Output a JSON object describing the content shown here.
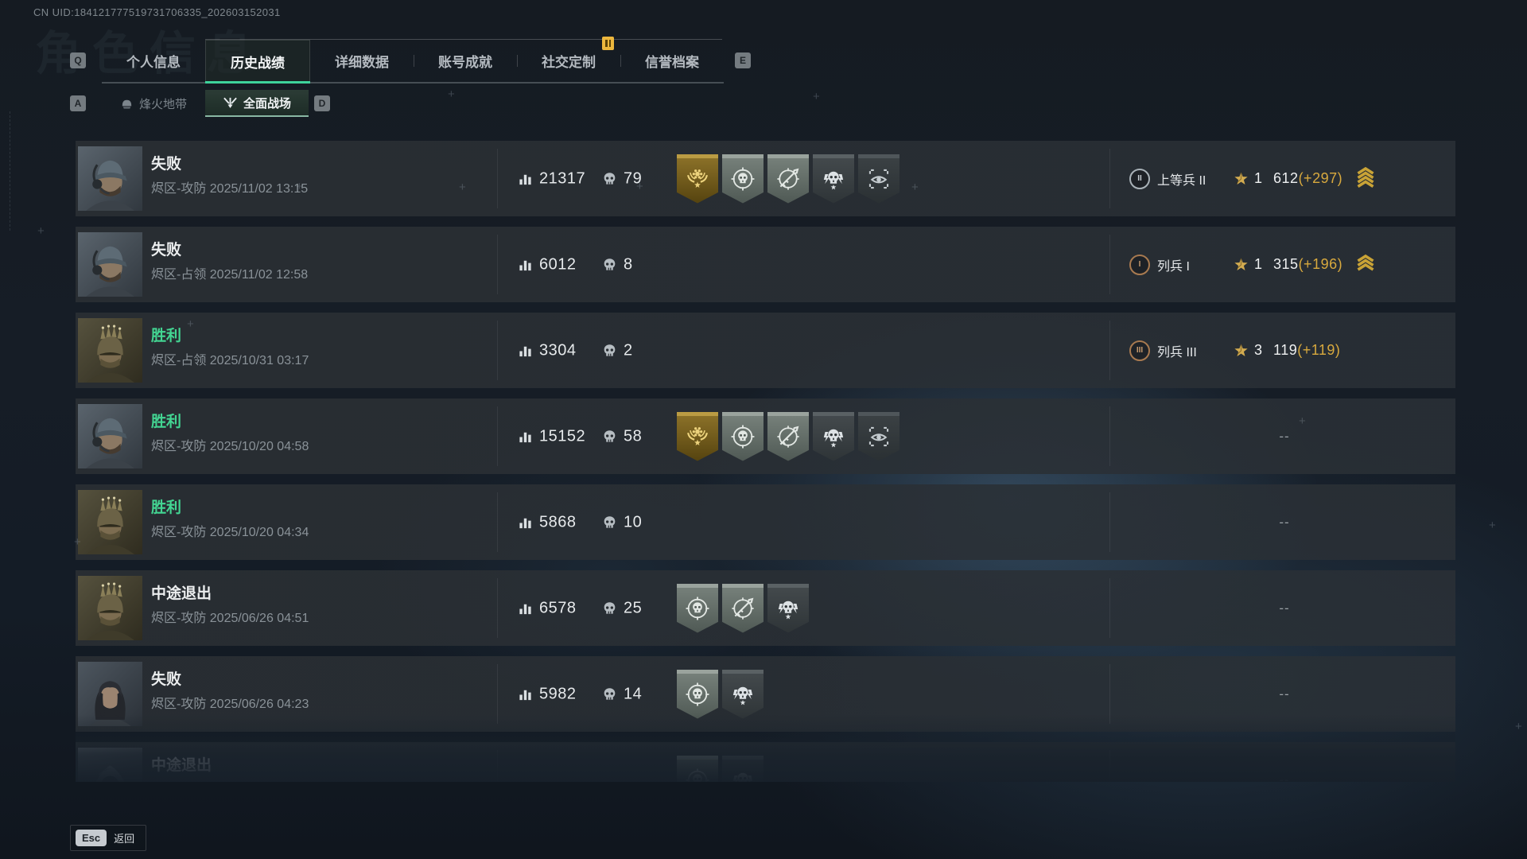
{
  "uid": "CN UID:184121777519731706335_202603152031",
  "watermark": "角色信息",
  "header": {
    "key_hint_left": "Q",
    "key_hint_right": "E",
    "tabs": [
      {
        "label": "个人信息",
        "active": false,
        "alert": false
      },
      {
        "label": "历史战绩",
        "active": true,
        "alert": false
      },
      {
        "label": "详细数据",
        "active": false,
        "alert": false
      },
      {
        "label": "账号成就",
        "active": false,
        "alert": false
      },
      {
        "label": "社交定制",
        "active": false,
        "alert": true
      },
      {
        "label": "信誉档案",
        "active": false,
        "alert": false
      }
    ]
  },
  "mode_switch": {
    "key_hint_left": "A",
    "key_hint_right": "D",
    "options": [
      {
        "label": "烽火地带",
        "icon": "helmet-icon",
        "active": false
      },
      {
        "label": "全面战场",
        "icon": "assault-wings-icon",
        "active": true
      }
    ]
  },
  "icons": {
    "score": "bar-chart-icon",
    "kills": "skull-icon",
    "rank_star": "gold-star-icon",
    "rank_up": "chevrons-up-icon"
  },
  "match_list": {
    "placeholder": "--",
    "matches": [
      {
        "result": "失败",
        "result_type": "loss",
        "mode": "烬区-攻防",
        "datetime": "2025/11/02 13:15",
        "score": "21317",
        "kills": "79",
        "avatar": "bearded-operator",
        "medals": [
          "gold-laurel",
          "skull-scope",
          "rifle-scope",
          "skull-lightning",
          "eye-brackets"
        ],
        "rank": {
          "numeral": "II",
          "tier": "silver",
          "name": "上等兵 II",
          "star_level": "1",
          "points": "612",
          "delta": "(+297)",
          "chevrons": 4
        }
      },
      {
        "result": "失败",
        "result_type": "loss",
        "mode": "烬区-占领",
        "datetime": "2025/11/02 12:58",
        "score": "6012",
        "kills": "8",
        "avatar": "bearded-operator",
        "medals": [],
        "rank": {
          "numeral": "I",
          "tier": "bronze",
          "name": "列兵 I",
          "star_level": "1",
          "points": "315",
          "delta": "(+196)",
          "chevrons": 3
        }
      },
      {
        "result": "胜利",
        "result_type": "win",
        "mode": "烬区-占领",
        "datetime": "2025/10/31 03:17",
        "score": "3304",
        "kills": "2",
        "avatar": "spiked-helmet-operator",
        "medals": [],
        "rank": {
          "numeral": "III",
          "tier": "bronze",
          "name": "列兵 III",
          "star_level": "3",
          "points": "119",
          "delta": "(+119)",
          "chevrons": 0
        }
      },
      {
        "result": "胜利",
        "result_type": "win",
        "mode": "烬区-攻防",
        "datetime": "2025/10/20 04:58",
        "score": "15152",
        "kills": "58",
        "avatar": "bearded-operator",
        "medals": [
          "gold-laurel",
          "skull-scope",
          "rifle-scope",
          "skull-lightning",
          "eye-brackets"
        ],
        "rank": null
      },
      {
        "result": "胜利",
        "result_type": "win",
        "mode": "烬区-攻防",
        "datetime": "2025/10/20 04:34",
        "score": "5868",
        "kills": "10",
        "avatar": "spiked-helmet-operator",
        "medals": [],
        "rank": null
      },
      {
        "result": "中途退出",
        "result_type": "quit",
        "mode": "烬区-攻防",
        "datetime": "2025/06/26 04:51",
        "score": "6578",
        "kills": "25",
        "avatar": "spiked-helmet-operator",
        "medals": [
          "skull-scope",
          "rifle-scope",
          "skull-lightning"
        ],
        "rank": null
      },
      {
        "result": "失败",
        "result_type": "loss",
        "mode": "烬区-攻防",
        "datetime": "2025/06/26 04:23",
        "score": "5982",
        "kills": "14",
        "avatar": "female-operator",
        "medals": [
          "skull-scope",
          "skull-lightning"
        ],
        "rank": null
      },
      {
        "result": "中途退出",
        "result_type": "quit",
        "mode": "",
        "datetime": "",
        "score": "",
        "kills": "",
        "avatar": "hooded-operator",
        "medals": [
          "skull-scope",
          "skull-lightning"
        ],
        "rank": null,
        "partial": true
      }
    ]
  },
  "footer": {
    "key": "Esc",
    "label": "返回"
  },
  "colors": {
    "accent_teal": "#3ed39b",
    "win_green": "#43d592",
    "gold": "#d8a93e",
    "loss_white": "#eceeef"
  }
}
